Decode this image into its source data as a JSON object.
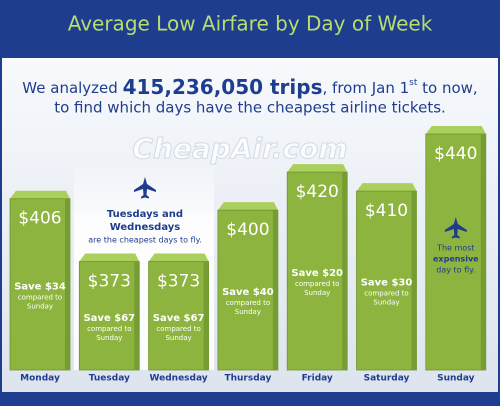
{
  "chart_data": {
    "type": "bar",
    "title": "Average Low Airfare by Day of Week",
    "subtitle_parts": [
      "We analyzed",
      "415,236,050 trips",
      ", from Jan 1",
      "st",
      "to now,",
      "to find which days have the cheapest airline tickets."
    ],
    "watermark": "CheapAir.com",
    "categories": [
      "Monday",
      "Tuesday",
      "Wednesday",
      "Thursday",
      "Friday",
      "Saturday",
      "Sunday"
    ],
    "values": [
      406,
      373,
      373,
      400,
      420,
      410,
      440
    ],
    "value_labels": [
      "$406",
      "$373",
      "$373",
      "$400",
      "$420",
      "$410",
      "$440"
    ],
    "color": "#8db43e",
    "ylim": [
      316,
      450
    ],
    "savings": {
      "prefix": "Save",
      "note_lines": [
        "compared to",
        "Sunday"
      ],
      "values": [
        34,
        67,
        67,
        40,
        20,
        30,
        null
      ],
      "value_labels": [
        "$34",
        "$67",
        "$67",
        "$40",
        "$20",
        "$30",
        null
      ]
    },
    "cheapest_note": [
      "Tuesdays and",
      "Wednesdays",
      "are the cheapest days to fly."
    ],
    "expensive_note": [
      "The most",
      "expensive",
      "day to fly."
    ]
  }
}
